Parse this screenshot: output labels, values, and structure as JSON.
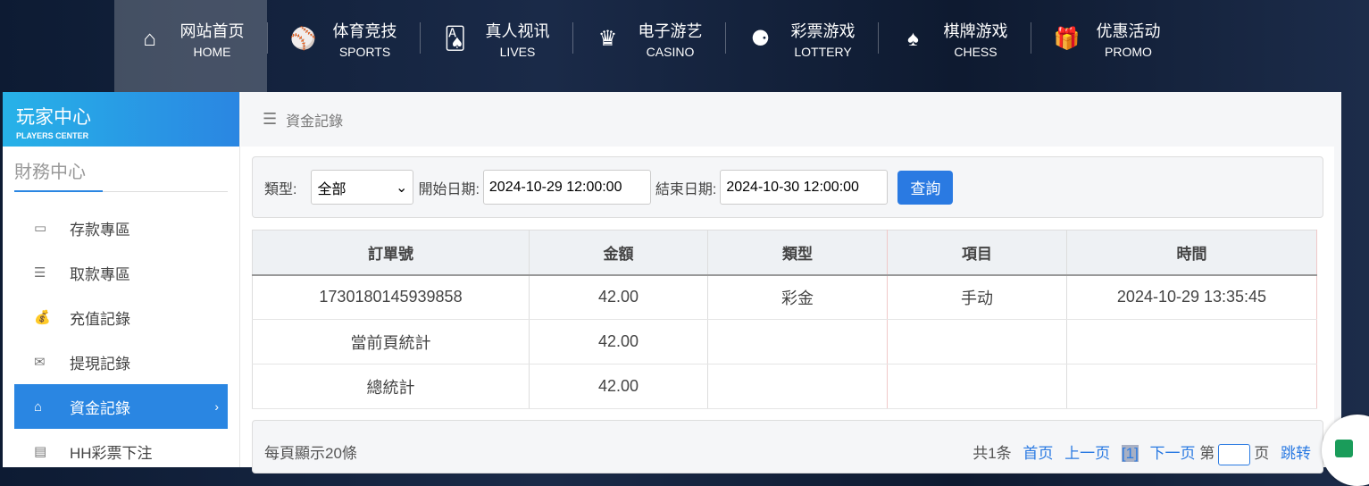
{
  "nav": [
    {
      "cn": "网站首页",
      "en": "HOME",
      "icon": "⌂",
      "name": "home"
    },
    {
      "cn": "体育竞技",
      "en": "SPORTS",
      "icon": "⚾",
      "name": "sports"
    },
    {
      "cn": "真人视讯",
      "en": "LIVES",
      "icon": "🂡",
      "name": "lives"
    },
    {
      "cn": "电子游艺",
      "en": "CASINO",
      "icon": "♛",
      "name": "casino"
    },
    {
      "cn": "彩票游戏",
      "en": "LOTTERY",
      "icon": "⚈",
      "name": "lottery"
    },
    {
      "cn": "棋牌游戏",
      "en": "CHESS",
      "icon": "♠",
      "name": "chess"
    },
    {
      "cn": "优惠活动",
      "en": "PROMO",
      "icon": "🎁",
      "name": "promo"
    }
  ],
  "sidebar": {
    "title_cn": "玩家中心",
    "title_en": "PLAYERS CENTER",
    "section": "財務中心",
    "items": [
      {
        "label": "存款專區",
        "icon": "▭"
      },
      {
        "label": "取款專區",
        "icon": "☰"
      },
      {
        "label": "充值記錄",
        "icon": "💰"
      },
      {
        "label": "提現記錄",
        "icon": "✉"
      },
      {
        "label": "資金記錄",
        "icon": "⌂"
      },
      {
        "label": "HH彩票下注",
        "icon": "▤"
      }
    ]
  },
  "breadcrumb": "資金記錄",
  "filter": {
    "type_label": "類型:",
    "type_value": "全部",
    "start_label": "開始日期:",
    "start_value": "2024-10-29 12:00:00",
    "end_label": "結束日期:",
    "end_value": "2024-10-30 12:00:00",
    "query": "查詢"
  },
  "table": {
    "headers": [
      "訂單號",
      "金額",
      "類型",
      "項目",
      "時間"
    ],
    "rows": [
      [
        "1730180145939858",
        "42.00",
        "彩金",
        "手动",
        "2024-10-29 13:35:45"
      ],
      [
        "當前頁統計",
        "42.00",
        "",
        "",
        ""
      ],
      [
        "總統計",
        "42.00",
        "",
        "",
        ""
      ]
    ]
  },
  "pager": {
    "per_page": "每頁顯示20條",
    "total": "共1条",
    "first": "首页",
    "prev": "上一页",
    "current": "[1]",
    "next": "下一页",
    "goto_pre": "第",
    "goto_post": "页",
    "jump": "跳转"
  }
}
